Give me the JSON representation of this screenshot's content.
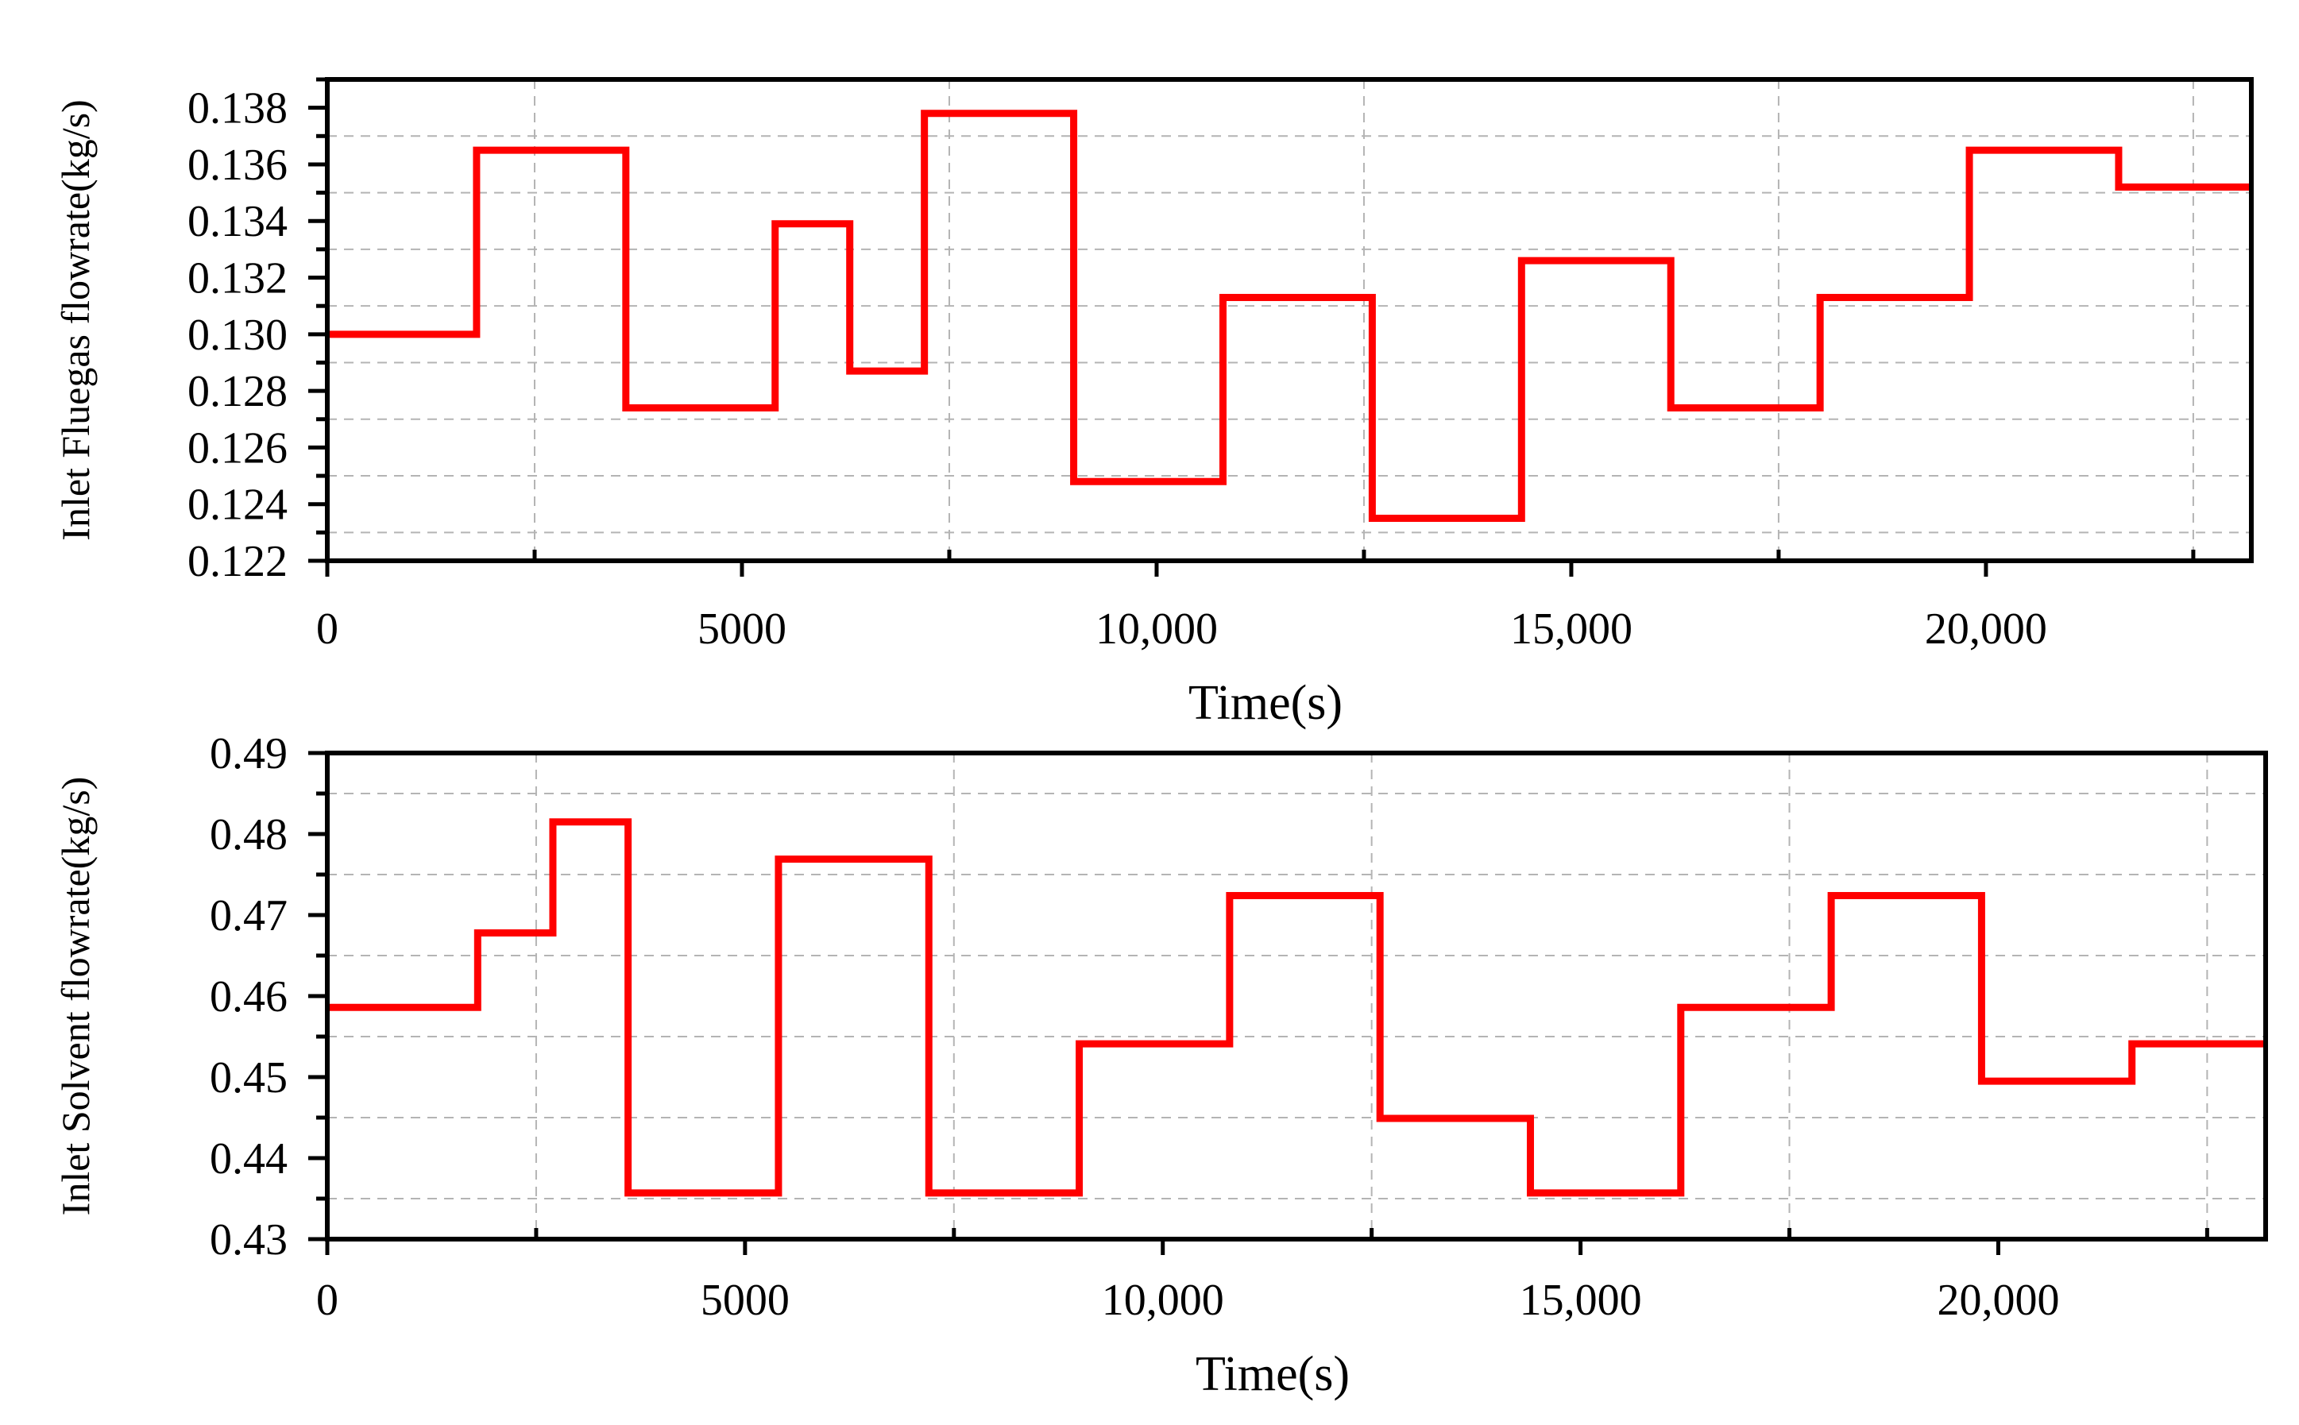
{
  "chart_data": [
    {
      "type": "line",
      "step": true,
      "title": "",
      "xlabel": "Time(s)",
      "ylabel": "Inlet Fluegas flowrate(kg/s)",
      "xlim": [
        0,
        23200
      ],
      "ylim": [
        0.122,
        0.139
      ],
      "x_ticks": [
        0,
        5000,
        10000,
        15000,
        20000
      ],
      "x_tick_labels": [
        "0",
        "5000",
        "10,000",
        "15,000",
        "20,000"
      ],
      "y_ticks": [
        0.122,
        0.124,
        0.126,
        0.128,
        0.13,
        0.132,
        0.134,
        0.136,
        0.138
      ],
      "y_tick_labels": [
        "0.122",
        "0.124",
        "0.126",
        "0.128",
        "0.130",
        "0.132",
        "0.134",
        "0.136",
        "0.138"
      ],
      "grid": true,
      "color": "#ff0000",
      "x": [
        0,
        1800,
        3600,
        5400,
        6300,
        7200,
        9000,
        10800,
        12600,
        14400,
        16200,
        18000,
        19800,
        21600,
        23200
      ],
      "y": [
        0.13,
        0.1365,
        0.1274,
        0.1339,
        0.1287,
        0.1378,
        0.1248,
        0.1313,
        0.1235,
        0.1326,
        0.1274,
        0.1313,
        0.1365,
        0.1352,
        0.1352
      ]
    },
    {
      "type": "line",
      "step": true,
      "title": "",
      "xlabel": "Time(s)",
      "ylabel": "Inlet Solvent flowrate(kg/s)",
      "xlim": [
        0,
        23200
      ],
      "ylim": [
        0.43,
        0.49
      ],
      "x_ticks": [
        0,
        5000,
        10000,
        15000,
        20000
      ],
      "x_tick_labels": [
        "0",
        "5000",
        "10,000",
        "15,000",
        "20,000"
      ],
      "y_ticks": [
        0.43,
        0.44,
        0.45,
        0.46,
        0.47,
        0.48,
        0.49
      ],
      "y_tick_labels": [
        "0.43",
        "0.44",
        "0.45",
        "0.46",
        "0.47",
        "0.48",
        "0.49"
      ],
      "grid": true,
      "color": "#ff0000",
      "x": [
        0,
        1800,
        2700,
        3600,
        5400,
        7200,
        9000,
        10800,
        12600,
        14400,
        16200,
        18000,
        19800,
        21600,
        23200
      ],
      "y": [
        0.4586,
        0.4678,
        0.4815,
        0.4357,
        0.4769,
        0.4357,
        0.4541,
        0.4724,
        0.4449,
        0.4357,
        0.4586,
        0.4724,
        0.4495,
        0.4541,
        0.4541
      ]
    }
  ]
}
